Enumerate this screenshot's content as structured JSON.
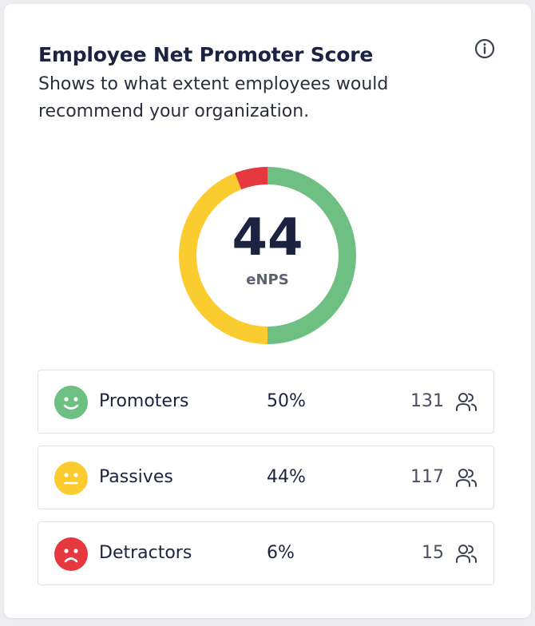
{
  "header": {
    "title": "Employee Net Promoter Score",
    "subtitle": "Shows to what extent employees would recommend your organization."
  },
  "score": {
    "value": "44",
    "label": "eNPS"
  },
  "colors": {
    "promoters": "#6dbf82",
    "passives": "#fbcc2f",
    "detractors": "#e5393f"
  },
  "breakdown": [
    {
      "label": "Promoters",
      "percent": "50%",
      "count": "131",
      "fraction": 0.5
    },
    {
      "label": "Passives",
      "percent": "44%",
      "count": "117",
      "fraction": 0.44
    },
    {
      "label": "Detractors",
      "percent": "6%",
      "count": "15",
      "fraction": 0.06
    }
  ],
  "icons": {
    "info": "info-icon",
    "promoters": "happy-face-icon",
    "passives": "neutral-face-icon",
    "detractors": "sad-face-icon",
    "people": "people-icon"
  }
}
